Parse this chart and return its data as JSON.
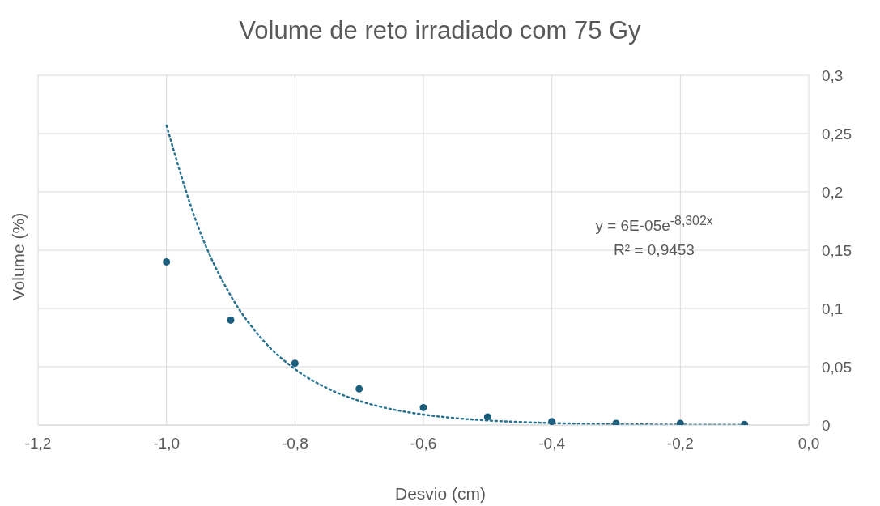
{
  "chart_data": {
    "type": "scatter",
    "title": "Volume de reto irradiado com 75 Gy",
    "xlabel": "Desvio (cm)",
    "ylabel": "Volume (%)",
    "annotations": [
      "y = 6E-05e$^{-8,302x}$",
      "R² = 0,9453"
    ],
    "series": [
      {
        "marker": "circle",
        "color": "#1b5e7e",
        "x": [
          -1.0,
          -0.9,
          -0.8,
          -0.7,
          -0.6,
          -0.5,
          -0.4,
          -0.3,
          -0.2,
          -0.1
        ],
        "values": [
          0.14,
          0.09,
          0.053,
          0.031,
          0.015,
          0.007,
          0.003,
          0.0014,
          0.0014,
          0.0005
        ]
      },
      {
        "type": "line",
        "marker": "none",
        "color": "#2a7390",
        "line_style": "dotted",
        "x": [
          -1.0,
          -0.95,
          -0.9,
          -0.85,
          -0.8,
          -0.75,
          -0.7,
          -0.65,
          -0.6,
          -0.55,
          -0.5,
          -0.45,
          -0.4,
          -0.3,
          -0.2,
          -0.1
        ],
        "values": [
          0.257,
          0.169,
          0.111,
          0.073,
          0.048,
          0.0317,
          0.0208,
          0.0137,
          0.009,
          0.0059,
          0.0039,
          0.0026,
          0.0017,
          0.0007,
          0.0003,
          0.0001
        ]
      }
    ],
    "grid": true,
    "legend": false,
    "xlim": [
      -1.2,
      0
    ],
    "xticks": [
      {
        "value": -1.2,
        "label": "-1,2"
      },
      {
        "value": -1.0,
        "label": "-1,0"
      },
      {
        "value": -0.8,
        "label": "-0,8"
      },
      {
        "value": -0.6,
        "label": "-0,6"
      },
      {
        "value": -0.4,
        "label": "-0,4"
      },
      {
        "value": -0.2,
        "label": "-0,2"
      },
      {
        "value": 0,
        "label": "0,0"
      }
    ],
    "ylim": [
      0,
      0.3
    ],
    "yticks": [
      0,
      {
        "value": 0.05,
        "label": "0,05"
      },
      {
        "value": 0.1,
        "label": "0,1"
      },
      {
        "value": 0.15,
        "label": "0,15"
      },
      {
        "value": 0.2,
        "label": "0,2"
      },
      {
        "value": 0.25,
        "label": "0,25"
      },
      {
        "value": 0.3,
        "label": "0,3"
      }
    ]
  }
}
